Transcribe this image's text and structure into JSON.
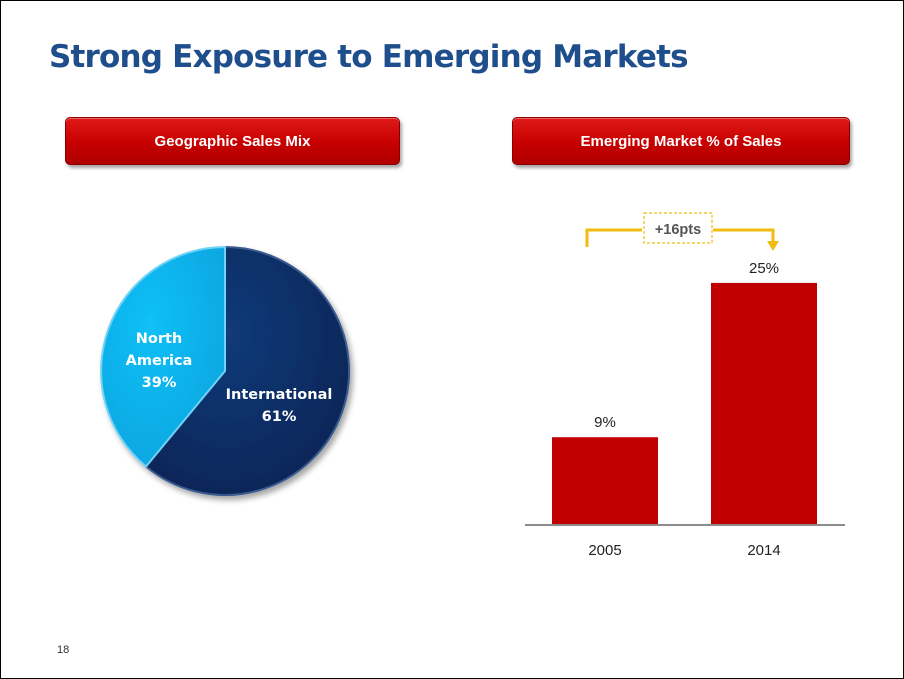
{
  "slide": {
    "title": "Strong Exposure to Emerging Markets",
    "page_number": "18"
  },
  "headers": {
    "left": "Geographic Sales Mix",
    "right": "Emerging Market % of Sales"
  },
  "colors": {
    "title": "#1f4e8c",
    "header_red": "#c80000",
    "international": "#0e2d62",
    "north_america": "#08b4f0",
    "bar": "#c00000",
    "bracket": "#f0bc0f"
  },
  "chart_data": [
    {
      "type": "pie",
      "title": "Geographic Sales Mix",
      "slices": [
        {
          "label_line1": "International",
          "value_label": "61%",
          "value": 61
        },
        {
          "label_line1": "North",
          "label_line2": "America",
          "value_label": "39%",
          "value": 39
        }
      ]
    },
    {
      "type": "bar",
      "title": "Emerging Market % of Sales",
      "categories": [
        "2005",
        "2014"
      ],
      "values": [
        9,
        25
      ],
      "value_labels": [
        "9%",
        "25%"
      ],
      "ylim": [
        0,
        28
      ],
      "annotation": "+16pts"
    }
  ]
}
